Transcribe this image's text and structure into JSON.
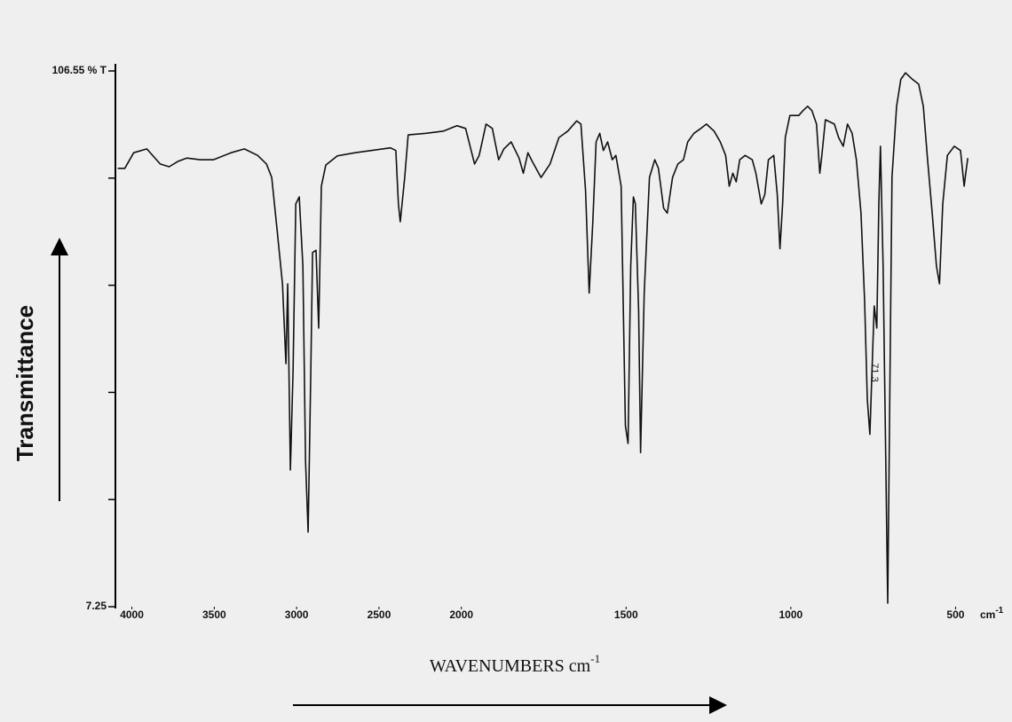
{
  "chart_data": {
    "type": "line",
    "y_label": "Transmittance",
    "x_label": {
      "text": "WAVENUMBERS cm",
      "superscript": "-1"
    },
    "x_unit": {
      "text": "cm",
      "superscript": "-1"
    },
    "annotation": "71.3",
    "color": "#111111",
    "xlim": [
      4100,
      450
    ],
    "x_scale_break": 2000,
    "x_scale_factor": 2,
    "xticks": [
      4000,
      3500,
      3000,
      2500,
      2000,
      1500,
      1000,
      500
    ],
    "ylim": [
      7.25,
      106.55
    ],
    "yticks": [
      {
        "value": 106.55,
        "label": "106.55 % T"
      },
      {
        "value": 86.69,
        "label": null
      },
      {
        "value": 66.83,
        "label": null
      },
      {
        "value": 46.97,
        "label": null
      },
      {
        "value": 27.11,
        "label": null
      },
      7.25
    ],
    "x": [
      4086,
      4043,
      3989,
      3909,
      3828,
      3774,
      3720,
      3667,
      3586,
      3505,
      3398,
      3317,
      3237,
      3183,
      3151,
      3118,
      3086,
      3065,
      3054,
      3038,
      3022,
      3005,
      2984,
      2962,
      2946,
      2930,
      2914,
      2903,
      2882,
      2866,
      2850,
      2823,
      2753,
      2645,
      2430,
      2398,
      2382,
      2371,
      2360,
      2344,
      2323,
      2215,
      2108,
      2027,
      1987,
      1960,
      1946,
      1925,
      1906,
      1887,
      1871,
      1849,
      1825,
      1812,
      1798,
      1785,
      1758,
      1731,
      1704,
      1677,
      1650,
      1637,
      1623,
      1612,
      1601,
      1591,
      1580,
      1569,
      1556,
      1542,
      1531,
      1515,
      1502,
      1494,
      1486,
      1478,
      1472,
      1462,
      1456,
      1445,
      1429,
      1413,
      1402,
      1386,
      1375,
      1359,
      1343,
      1326,
      1313,
      1294,
      1273,
      1256,
      1233,
      1214,
      1198,
      1187,
      1176,
      1166,
      1155,
      1139,
      1117,
      1106,
      1090,
      1079,
      1068,
      1052,
      1041,
      1033,
      1025,
      1017,
      1003,
      976,
      963,
      949,
      936,
      922,
      912,
      906,
      895,
      868,
      855,
      841,
      828,
      814,
      801,
      787,
      776,
      768,
      760,
      752,
      747,
      739,
      733,
      728,
      720,
      709,
      706,
      701,
      693,
      679,
      666,
      652,
      631,
      612,
      598,
      585,
      571,
      558,
      549,
      539,
      525,
      504,
      485,
      474,
      469,
      463
    ],
    "values": [
      88.5,
      88.5,
      91.4,
      92.1,
      89.3,
      88.8,
      89.8,
      90.4,
      90.1,
      90.1,
      91.4,
      92.1,
      90.9,
      89.3,
      86.8,
      77.0,
      67.1,
      52.3,
      67.1,
      32.6,
      50.7,
      81.9,
      83.2,
      70.4,
      34.2,
      21.1,
      50.7,
      72.9,
      73.3,
      58.9,
      85.2,
      89.1,
      90.8,
      91.4,
      92.3,
      91.8,
      81.9,
      78.6,
      81.9,
      86.8,
      94.7,
      95.0,
      95.4,
      96.4,
      95.9,
      89.3,
      90.9,
      96.7,
      95.9,
      90.1,
      92.1,
      93.4,
      90.4,
      87.6,
      91.4,
      89.8,
      86.8,
      89.3,
      94.2,
      95.4,
      97.3,
      96.7,
      84.4,
      65.4,
      78.6,
      93.4,
      95.0,
      91.8,
      93.4,
      90.1,
      90.9,
      85.2,
      40.8,
      37.5,
      70.4,
      83.2,
      81.9,
      62.2,
      35.8,
      65.4,
      86.8,
      90.1,
      88.5,
      81.1,
      80.2,
      86.8,
      89.3,
      90.1,
      93.4,
      95.0,
      95.9,
      96.7,
      95.4,
      93.4,
      90.9,
      85.2,
      87.6,
      86.0,
      90.1,
      90.9,
      90.1,
      87.6,
      81.9,
      83.6,
      90.1,
      90.9,
      83.6,
      73.6,
      81.9,
      94.2,
      98.3,
      98.3,
      99.2,
      100.0,
      99.2,
      96.7,
      87.6,
      90.9,
      97.5,
      96.7,
      94.2,
      92.6,
      96.7,
      95.0,
      90.1,
      80.2,
      63.8,
      45.7,
      39.2,
      53.9,
      63.0,
      58.9,
      81.9,
      92.6,
      70.4,
      21.1,
      7.9,
      37.5,
      86.8,
      100.0,
      105.0,
      106.2,
      105.0,
      104.1,
      100.0,
      90.1,
      80.2,
      70.4,
      67.1,
      81.9,
      90.9,
      92.6,
      91.8,
      85.2,
      87.6,
      90.4
    ]
  }
}
